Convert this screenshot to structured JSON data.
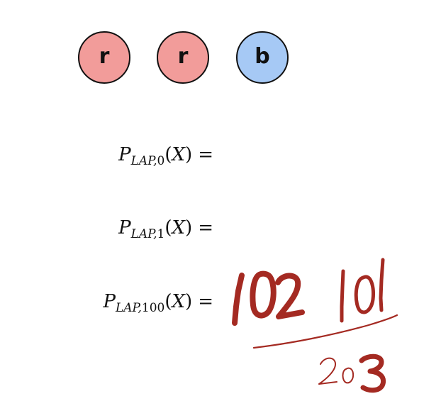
{
  "balls": [
    {
      "label": "r",
      "fill": "#f29c9a"
    },
    {
      "label": "r",
      "fill": "#f29c9a"
    },
    {
      "label": "b",
      "fill": "#a6c9f5"
    }
  ],
  "equations": [
    {
      "symbol": "P",
      "subscript_label": "LAP,",
      "subscript_index": "0",
      "open": "(",
      "var": "X",
      "close": ")",
      "equals": "="
    },
    {
      "symbol": "P",
      "subscript_label": "LAP,",
      "subscript_index": "1",
      "open": "(",
      "var": "X",
      "close": ")",
      "equals": "="
    },
    {
      "symbol": "P",
      "subscript_label": "LAP,",
      "subscript_index": "100",
      "open": "(",
      "var": "X",
      "close": ")",
      "equals": "="
    }
  ],
  "handwriting": {
    "ink_color": "#a42a22",
    "numerator_1": "102",
    "numerator_2": "101",
    "denominator": "203"
  }
}
